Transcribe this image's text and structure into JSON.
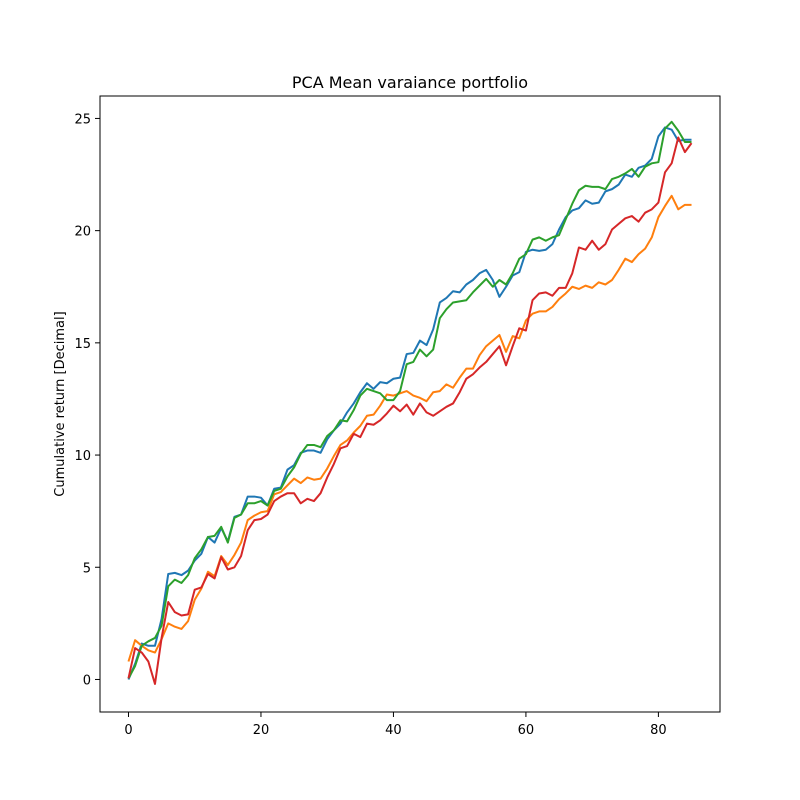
{
  "chart_data": {
    "type": "line",
    "title": "PCA Mean varaiance portfolio",
    "xlabel": "",
    "ylabel": "Cumulative return [Decimal]",
    "xlim": [
      -4.3,
      89.3
    ],
    "ylim": [
      -1.45,
      26.0
    ],
    "xticks": [
      0,
      20,
      40,
      60,
      80
    ],
    "yticks": [
      0,
      5,
      10,
      15,
      20,
      25
    ],
    "grid": false,
    "x": [
      0,
      1,
      2,
      3,
      4,
      5,
      6,
      7,
      8,
      9,
      10,
      11,
      12,
      13,
      14,
      15,
      16,
      17,
      18,
      19,
      20,
      21,
      22,
      23,
      24,
      25,
      26,
      27,
      28,
      29,
      30,
      31,
      32,
      33,
      34,
      35,
      36,
      37,
      38,
      39,
      40,
      41,
      42,
      43,
      44,
      45,
      46,
      47,
      48,
      49,
      50,
      51,
      52,
      53,
      54,
      55,
      56,
      57,
      58,
      59,
      60,
      61,
      62,
      63,
      64,
      65,
      66,
      67,
      68,
      69,
      70,
      71,
      72,
      73,
      74,
      75,
      76,
      77,
      78,
      79,
      80,
      81,
      82,
      83,
      84,
      85
    ],
    "series": [
      {
        "color": "#1f77b4",
        "values": [
          0.0,
          0.7,
          1.6,
          1.5,
          1.5,
          2.7,
          4.7,
          4.75,
          4.65,
          4.85,
          5.3,
          5.6,
          6.35,
          6.1,
          6.75,
          6.15,
          7.25,
          7.35,
          8.15,
          8.15,
          8.1,
          7.75,
          8.5,
          8.55,
          9.35,
          9.55,
          10.1,
          10.2,
          10.2,
          10.1,
          10.7,
          11.1,
          11.4,
          11.9,
          12.3,
          12.8,
          13.2,
          12.95,
          13.25,
          13.2,
          13.4,
          13.45,
          14.5,
          14.55,
          15.1,
          14.9,
          15.6,
          16.8,
          17.0,
          17.3,
          17.25,
          17.6,
          17.8,
          18.1,
          18.25,
          17.8,
          17.05,
          17.5,
          18.0,
          18.15,
          19.05,
          19.15,
          19.1,
          19.15,
          19.4,
          20.05,
          20.6,
          20.9,
          21.0,
          21.35,
          21.2,
          21.25,
          21.75,
          21.85,
          22.05,
          22.5,
          22.4,
          22.8,
          22.9,
          23.2,
          24.2,
          24.6,
          24.5,
          24.0,
          24.05,
          24.05
        ]
      },
      {
        "color": "#ff7f0e",
        "values": [
          0.8,
          1.75,
          1.5,
          1.3,
          1.2,
          1.8,
          2.5,
          2.35,
          2.25,
          2.6,
          3.55,
          4.05,
          4.8,
          4.6,
          5.5,
          5.1,
          5.55,
          6.1,
          7.1,
          7.3,
          7.45,
          7.5,
          8.25,
          8.35,
          8.65,
          8.95,
          8.75,
          9.0,
          8.9,
          8.95,
          9.4,
          9.95,
          10.45,
          10.65,
          11.0,
          11.3,
          11.75,
          11.8,
          12.2,
          12.7,
          12.65,
          12.75,
          12.85,
          12.65,
          12.55,
          12.4,
          12.8,
          12.85,
          13.15,
          13.0,
          13.45,
          13.85,
          13.85,
          14.45,
          14.85,
          15.1,
          15.35,
          14.6,
          15.3,
          15.2,
          16.0,
          16.3,
          16.4,
          16.4,
          16.6,
          16.95,
          17.2,
          17.5,
          17.4,
          17.55,
          17.45,
          17.7,
          17.6,
          17.8,
          18.25,
          18.75,
          18.6,
          18.95,
          19.2,
          19.7,
          20.6,
          21.1,
          21.55,
          20.95,
          21.15,
          21.15
        ]
      },
      {
        "color": "#2ca02c",
        "values": [
          0.05,
          0.6,
          1.5,
          1.7,
          1.85,
          2.4,
          4.15,
          4.45,
          4.3,
          4.65,
          5.4,
          5.8,
          6.35,
          6.4,
          6.8,
          6.1,
          7.2,
          7.35,
          7.85,
          7.85,
          7.95,
          7.75,
          8.4,
          8.5,
          9.05,
          9.45,
          10.05,
          10.45,
          10.45,
          10.35,
          10.85,
          11.1,
          11.55,
          11.5,
          12.0,
          12.65,
          12.95,
          12.85,
          12.75,
          12.45,
          12.45,
          12.85,
          14.05,
          14.15,
          14.7,
          14.4,
          14.7,
          16.1,
          16.5,
          16.8,
          16.85,
          16.9,
          17.25,
          17.55,
          17.85,
          17.5,
          17.8,
          17.6,
          18.1,
          18.75,
          18.95,
          19.6,
          19.7,
          19.55,
          19.7,
          19.8,
          20.5,
          21.2,
          21.8,
          22.0,
          21.95,
          21.95,
          21.85,
          22.3,
          22.4,
          22.55,
          22.75,
          22.4,
          22.85,
          23.0,
          23.05,
          24.55,
          24.85,
          24.45,
          23.95,
          23.95
        ]
      },
      {
        "color": "#d62728",
        "values": [
          0.05,
          1.4,
          1.2,
          0.8,
          -0.2,
          1.85,
          3.45,
          3.0,
          2.85,
          2.9,
          4.0,
          4.1,
          4.7,
          4.5,
          5.45,
          4.9,
          5.0,
          5.5,
          6.65,
          7.1,
          7.15,
          7.35,
          7.95,
          8.15,
          8.3,
          8.3,
          7.85,
          8.05,
          7.95,
          8.3,
          9.0,
          9.6,
          10.3,
          10.4,
          10.95,
          10.8,
          11.4,
          11.35,
          11.55,
          11.85,
          12.2,
          11.95,
          12.25,
          11.8,
          12.3,
          11.9,
          11.75,
          11.95,
          12.15,
          12.3,
          12.8,
          13.4,
          13.6,
          13.9,
          14.15,
          14.5,
          14.85,
          14.0,
          14.85,
          15.65,
          15.55,
          16.9,
          17.2,
          17.25,
          17.1,
          17.45,
          17.45,
          18.1,
          19.25,
          19.15,
          19.55,
          19.15,
          19.4,
          20.05,
          20.3,
          20.55,
          20.65,
          20.4,
          20.8,
          20.95,
          21.25,
          22.6,
          23.0,
          24.15,
          23.5,
          23.9
        ]
      }
    ]
  }
}
